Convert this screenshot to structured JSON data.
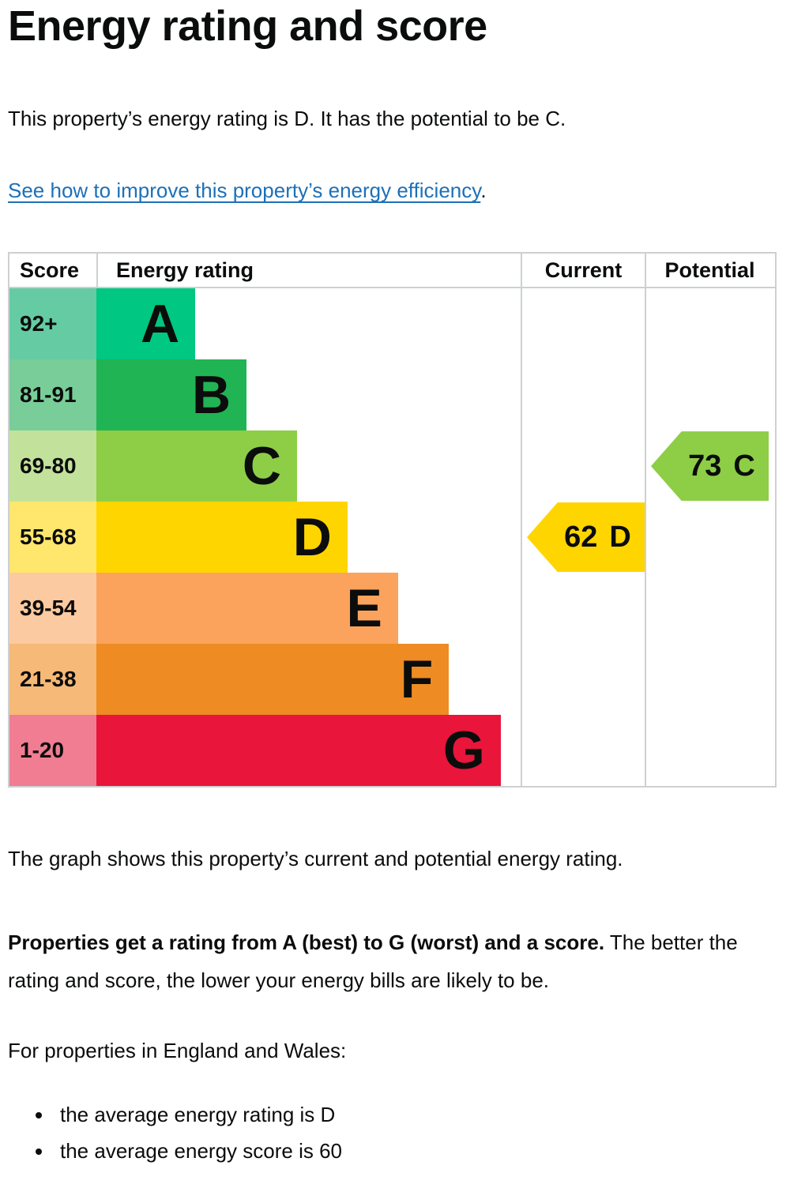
{
  "page": {
    "title": "Energy rating and score",
    "intro": "This property’s energy rating is D. It has the potential to be C.",
    "improve_link": "See how to improve this property’s energy efficiency",
    "improve_suffix": ".",
    "graph_caption": "The graph shows this property’s current and potential energy rating.",
    "explain_bold": "Properties get a rating from A (best) to G (worst) and a score.",
    "explain_rest": " The better the rating and score, the lower your energy bills are likely to be.",
    "region_heading": "For properties in England and Wales:",
    "bullets": [
      "the average energy rating is D",
      "the average energy score is 60"
    ]
  },
  "chart_data": {
    "type": "bar",
    "title": "Energy rating and score",
    "headers": {
      "score": "Score",
      "rating": "Energy rating",
      "current": "Current",
      "potential": "Potential"
    },
    "bands": [
      {
        "rating": "A",
        "score_range": "92+",
        "bar_length_pct": 23.3,
        "color": "#00c781",
        "tint_color": "#65cba3"
      },
      {
        "rating": "B",
        "score_range": "81-91",
        "bar_length_pct": 35.4,
        "color": "#21b454",
        "tint_color": "#79cd98"
      },
      {
        "rating": "C",
        "score_range": "69-80",
        "bar_length_pct": 47.3,
        "color": "#8dce46",
        "tint_color": "#c2e29b"
      },
      {
        "rating": "D",
        "score_range": "55-68",
        "bar_length_pct": 59.2,
        "color": "#ffd500",
        "tint_color": "#ffe76d"
      },
      {
        "rating": "E",
        "score_range": "39-54",
        "bar_length_pct": 71.1,
        "color": "#fba35c",
        "tint_color": "#fccaa0"
      },
      {
        "rating": "F",
        "score_range": "21-38",
        "bar_length_pct": 83.1,
        "color": "#ee8b22",
        "tint_color": "#f6b977"
      },
      {
        "rating": "G",
        "score_range": "1-20",
        "bar_length_pct": 95.3,
        "color": "#e9153b",
        "tint_color": "#f07d92"
      }
    ],
    "current": {
      "score": "62",
      "rating": "D",
      "color": "#ffd500"
    },
    "potential": {
      "score": "73",
      "rating": "C",
      "color": "#8dce46"
    }
  }
}
